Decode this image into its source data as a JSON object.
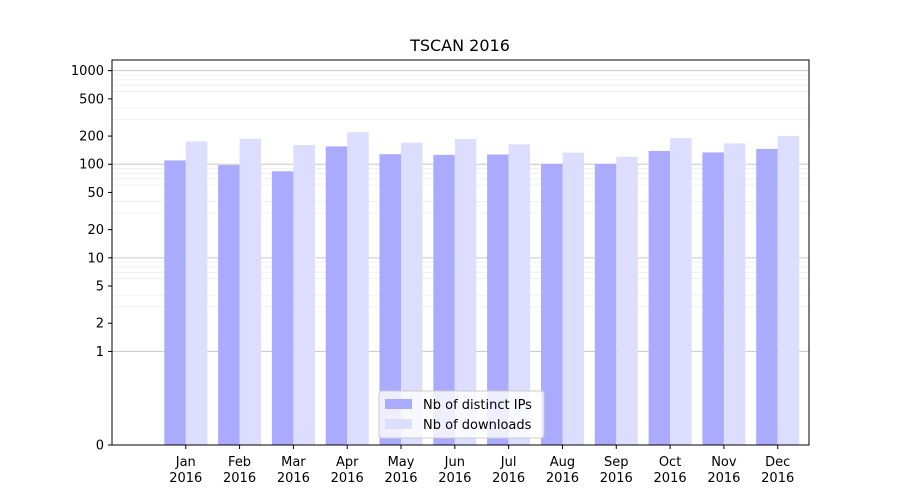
{
  "chart_data": {
    "type": "bar",
    "title": "TSCAN 2016",
    "xlabel": "",
    "ylabel": "",
    "yscale": "symlog",
    "ylim": [
      0,
      1300
    ],
    "yticks": [
      0,
      1,
      2,
      5,
      10,
      20,
      50,
      100,
      200,
      500,
      1000
    ],
    "ytick_labels": [
      "0",
      "1",
      "2",
      "5",
      "10",
      "20",
      "50",
      "100",
      "200",
      "500",
      "1000"
    ],
    "grid": "horizontal",
    "legend_position": "bottom-center",
    "categories": [
      "Jan 2016",
      "Feb 2016",
      "Mar 2016",
      "Apr 2016",
      "May 2016",
      "Jun 2016",
      "Jul 2016",
      "Aug 2016",
      "Sep 2016",
      "Oct 2016",
      "Nov 2016",
      "Dec 2016"
    ],
    "category_lines": [
      [
        "Jan",
        "2016"
      ],
      [
        "Feb",
        "2016"
      ],
      [
        "Mar",
        "2016"
      ],
      [
        "Apr",
        "2016"
      ],
      [
        "May",
        "2016"
      ],
      [
        "Jun",
        "2016"
      ],
      [
        "Jul",
        "2016"
      ],
      [
        "Aug",
        "2016"
      ],
      [
        "Sep",
        "2016"
      ],
      [
        "Oct",
        "2016"
      ],
      [
        "Nov",
        "2016"
      ],
      [
        "Dec",
        "2016"
      ]
    ],
    "series": [
      {
        "name": "Nb of distinct IPs",
        "color": "#aaaaff",
        "values": [
          110,
          98,
          84,
          155,
          128,
          126,
          127,
          101,
          101,
          139,
          134,
          146
        ]
      },
      {
        "name": "Nb of downloads",
        "color": "#ddddff",
        "values": [
          175,
          187,
          160,
          220,
          170,
          186,
          163,
          133,
          120,
          190,
          167,
          200
        ]
      }
    ]
  }
}
